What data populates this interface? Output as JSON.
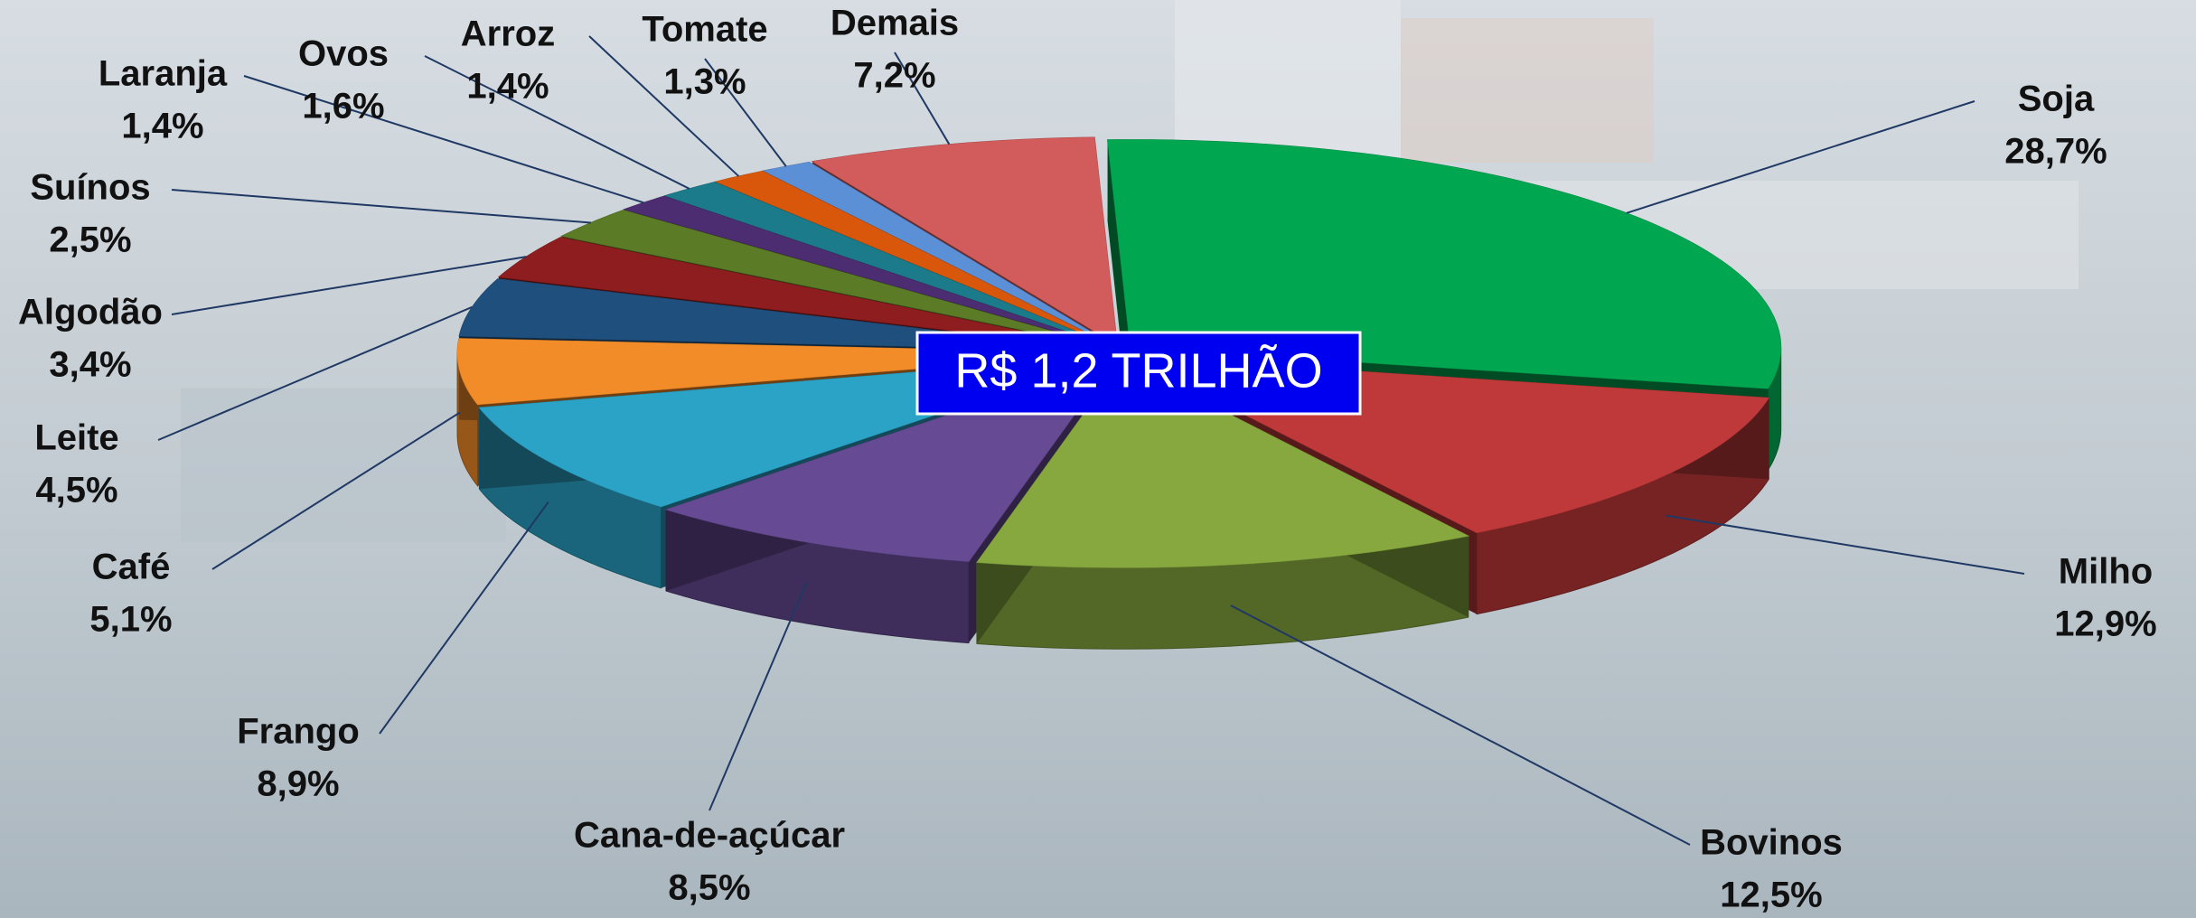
{
  "chart_data": {
    "type": "pie3d",
    "center_label": "R$ 1,2 TRILHÃO",
    "categories": [
      "Soja",
      "Milho",
      "Bovinos",
      "Cana-de-açúcar",
      "Frango",
      "Café",
      "Leite",
      "Algodão",
      "Suínos",
      "Laranja",
      "Ovos",
      "Arroz",
      "Tomate",
      "Demais"
    ],
    "values": [
      28.7,
      12.9,
      12.5,
      8.5,
      8.9,
      5.1,
      4.5,
      3.4,
      2.5,
      1.4,
      1.6,
      1.4,
      1.3,
      7.2
    ],
    "value_labels": [
      "28,7%",
      "12,9%",
      "12,5%",
      "8,5%",
      "8,9%",
      "5,1%",
      "4,5%",
      "3,4%",
      "2,5%",
      "1,4%",
      "1,6%",
      "1,4%",
      "1,3%",
      "7,2%"
    ],
    "colors": [
      "#00a650",
      "#c0393a",
      "#86a83e",
      "#664a94",
      "#2aa3c6",
      "#f28c28",
      "#1f4f7c",
      "#8e1d1f",
      "#5b7b26",
      "#4d2d72",
      "#1c7b8a",
      "#d8570a",
      "#5b8fd6",
      "#d25b5b"
    ]
  }
}
